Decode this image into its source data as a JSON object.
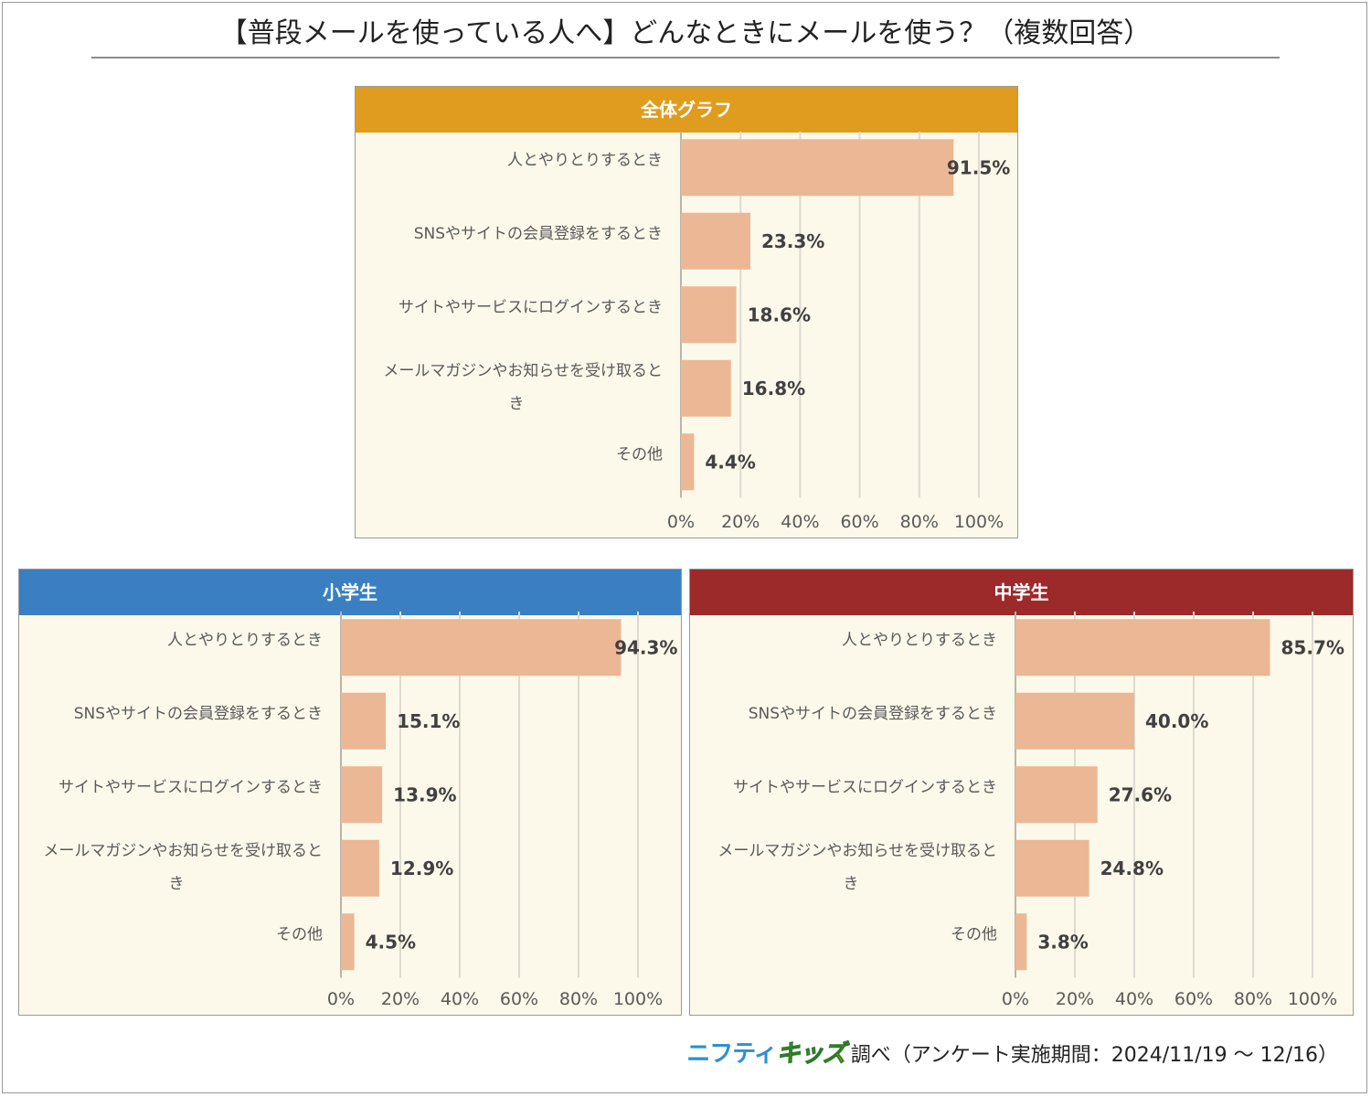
{
  "title": "【普段メールを使っている人へ】どんなときにメールを使う？（複数回答）",
  "footer": {
    "logo_part1": "ニフティ",
    "logo_part2": "キッズ",
    "source_text": "調べ（アンケート実施期間：2024/11/19 ～ 12/16）"
  },
  "colors": {
    "bar": "#ebb795",
    "overall_header": "#e09c1e",
    "elementary_header": "#3a7fc1",
    "junior_high_header": "#9c2a2a",
    "panel_background": "#fcf9ea",
    "gridline": "#dedad0"
  },
  "chart_data": [
    {
      "type": "bar",
      "orientation": "horizontal",
      "title": "全体グラフ",
      "categories": [
        "人とやりとりするとき",
        "SNSやサイトの会員登録をするとき",
        "サイトやサービスにログインするとき",
        "メールマガジンやお知らせを受け取るとき",
        "その他"
      ],
      "values": [
        91.5,
        23.3,
        18.6,
        16.8,
        4.4
      ],
      "value_labels": [
        "91.5%",
        "23.3%",
        "18.6%",
        "16.8%",
        "4.4%"
      ],
      "x_ticks": [
        "0%",
        "20%",
        "40%",
        "60%",
        "80%",
        "100%"
      ],
      "xlim": [
        0,
        100
      ],
      "grid": true
    },
    {
      "type": "bar",
      "orientation": "horizontal",
      "title": "小学生",
      "categories": [
        "人とやりとりするとき",
        "SNSやサイトの会員登録をするとき",
        "サイトやサービスにログインするとき",
        "メールマガジンやお知らせを受け取るとき",
        "その他"
      ],
      "values": [
        94.3,
        15.1,
        13.9,
        12.9,
        4.5
      ],
      "value_labels": [
        "94.3%",
        "15.1%",
        "13.9%",
        "12.9%",
        "4.5%"
      ],
      "x_ticks": [
        "0%",
        "20%",
        "40%",
        "60%",
        "80%",
        "100%"
      ],
      "xlim": [
        0,
        100
      ],
      "grid": true
    },
    {
      "type": "bar",
      "orientation": "horizontal",
      "title": "中学生",
      "categories": [
        "人とやりとりするとき",
        "SNSやサイトの会員登録をするとき",
        "サイトやサービスにログインするとき",
        "メールマガジンやお知らせを受け取るとき",
        "その他"
      ],
      "values": [
        85.7,
        40.0,
        27.6,
        24.8,
        3.8
      ],
      "value_labels": [
        "85.7%",
        "40.0%",
        "27.6%",
        "24.8%",
        "3.8%"
      ],
      "x_ticks": [
        "0%",
        "20%",
        "40%",
        "60%",
        "80%",
        "100%"
      ],
      "xlim": [
        0,
        100
      ],
      "grid": true
    }
  ]
}
